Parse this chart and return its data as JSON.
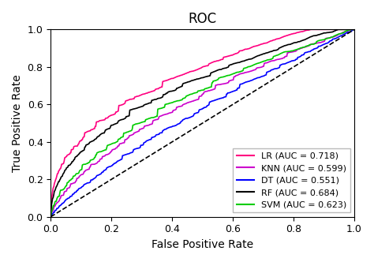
{
  "title": "ROC",
  "xlabel": "False Positive Rate",
  "ylabel": "True Positive Rate",
  "xlim": [
    0.0,
    1.0
  ],
  "ylim": [
    0.0,
    1.0
  ],
  "curves": [
    {
      "label": "LR (AUC = 0.718)",
      "color": "#ff0080",
      "auc": 0.718,
      "seed": 10,
      "noise": 0.022
    },
    {
      "label": "KNN (AUC = 0.599)",
      "color": "#cc00cc",
      "auc": 0.599,
      "seed": 20,
      "noise": 0.018
    },
    {
      "label": "DT (AUC = 0.551)",
      "color": "#0000ff",
      "auc": 0.551,
      "seed": 30,
      "noise": 0.008
    },
    {
      "label": "RF (AUC = 0.684)",
      "color": "#000000",
      "auc": 0.684,
      "seed": 40,
      "noise": 0.012
    },
    {
      "label": "SVM (AUC = 0.623)",
      "color": "#00cc00",
      "auc": 0.623,
      "seed": 50,
      "noise": 0.018
    }
  ],
  "diagonal_color": "#000000",
  "background_color": "#ffffff",
  "legend_loc": "lower right",
  "title_fontsize": 12,
  "label_fontsize": 10,
  "tick_fontsize": 9,
  "legend_fontsize": 8
}
